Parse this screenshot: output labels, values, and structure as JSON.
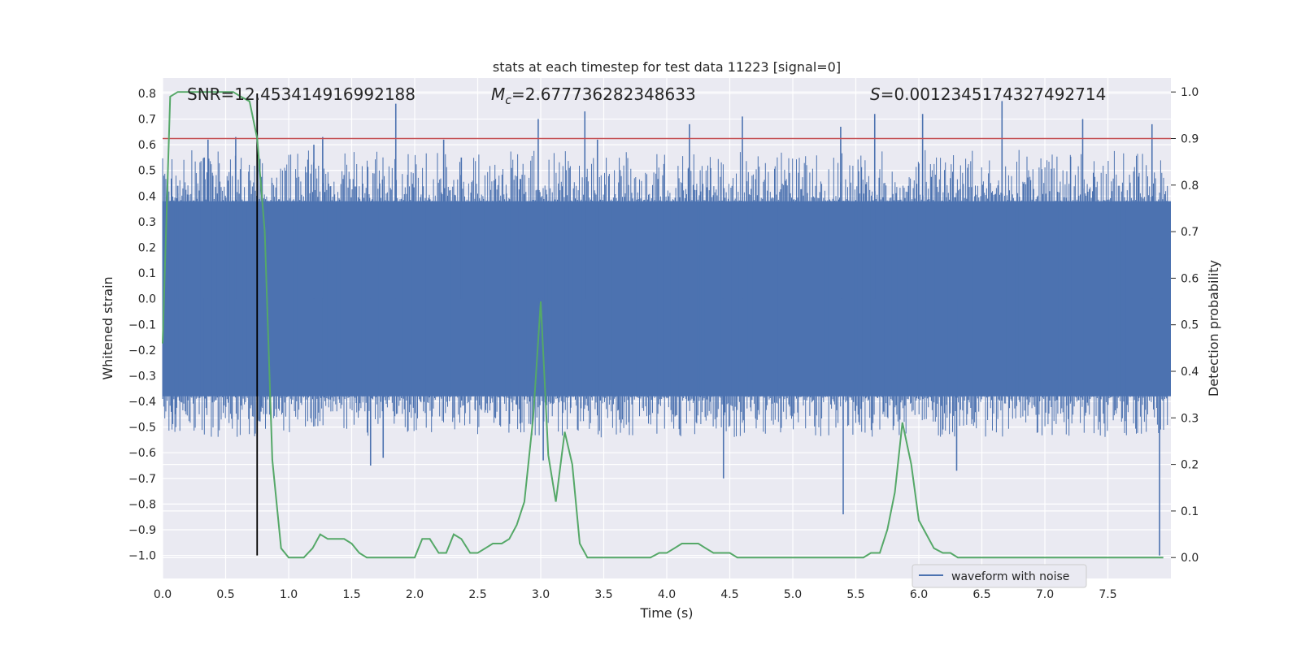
{
  "chart_data": {
    "type": "line",
    "title": "stats at each timestep for test data 11223 [signal=0]",
    "xlabel": "Time (s)",
    "ylabel": "Whitened strain",
    "y2label": "Detection probability",
    "xlim": [
      0.0,
      8.0
    ],
    "ylim": [
      -1.09,
      0.86
    ],
    "y2lim": [
      -0.045,
      1.03
    ],
    "x_ticks": [
      "0.0",
      "0.5",
      "1.0",
      "1.5",
      "2.0",
      "2.5",
      "3.0",
      "3.5",
      "4.0",
      "4.5",
      "5.0",
      "5.5",
      "6.0",
      "6.5",
      "7.0",
      "7.5"
    ],
    "y_ticks": [
      "0.8",
      "0.7",
      "0.6",
      "0.5",
      "0.4",
      "0.3",
      "0.2",
      "0.1",
      "0.0",
      "-0.1",
      "-0.2",
      "-0.3",
      "-0.4",
      "-0.5",
      "-0.6",
      "-0.7",
      "-0.8",
      "-0.9",
      "-1.0"
    ],
    "y2_ticks": [
      "1.0",
      "0.9",
      "0.8",
      "0.7",
      "0.6",
      "0.5",
      "0.4",
      "0.3",
      "0.2",
      "0.1",
      "0.0"
    ],
    "grid": true,
    "legend_position": "bottom-right",
    "annotations": {
      "snr": "SNR=12.453414916992188",
      "mc_symbol": "M",
      "mc_sub": "c",
      "mc_value": "=2.677736282348633",
      "s_symbol": "S",
      "s_value": "=0.0012345174327492714"
    },
    "threshold_line": {
      "y2": 0.9,
      "color": "#c44e52"
    },
    "vertical_marker": {
      "x": 0.75,
      "y_from": -1.0,
      "y_to": 0.8,
      "color": "#000000"
    },
    "series": [
      {
        "name": "waveform with noise",
        "axis": "left",
        "color": "#4c72b0",
        "typical_amplitude": 0.38,
        "spikes": [
          {
            "x": 0.02,
            "y": -0.25
          },
          {
            "x": 0.1,
            "y": -0.45
          },
          {
            "x": 0.12,
            "y": 0.44
          },
          {
            "x": 0.33,
            "y": 0.55
          },
          {
            "x": 0.36,
            "y": 0.62
          },
          {
            "x": 0.58,
            "y": 0.63
          },
          {
            "x": 0.78,
            "y": -0.44
          },
          {
            "x": 1.2,
            "y": 0.6
          },
          {
            "x": 1.27,
            "y": 0.63
          },
          {
            "x": 1.85,
            "y": 0.76
          },
          {
            "x": 1.65,
            "y": -0.65
          },
          {
            "x": 1.75,
            "y": -0.62
          },
          {
            "x": 2.23,
            "y": 0.62
          },
          {
            "x": 2.37,
            "y": 0.55
          },
          {
            "x": 2.98,
            "y": 0.7
          },
          {
            "x": 3.02,
            "y": -0.63
          },
          {
            "x": 3.35,
            "y": 0.73
          },
          {
            "x": 3.45,
            "y": 0.62
          },
          {
            "x": 4.18,
            "y": 0.68
          },
          {
            "x": 4.45,
            "y": -0.7
          },
          {
            "x": 4.6,
            "y": 0.71
          },
          {
            "x": 5.38,
            "y": 0.67
          },
          {
            "x": 5.4,
            "y": -0.84
          },
          {
            "x": 5.65,
            "y": 0.72
          },
          {
            "x": 6.03,
            "y": 0.72
          },
          {
            "x": 6.3,
            "y": -0.67
          },
          {
            "x": 6.66,
            "y": 0.77
          },
          {
            "x": 7.3,
            "y": 0.7
          },
          {
            "x": 7.91,
            "y": -1.0
          },
          {
            "x": 7.85,
            "y": 0.68
          }
        ]
      },
      {
        "name": "",
        "axis": "right",
        "color": "#55a868",
        "x": [
          0.0,
          0.06,
          0.12,
          0.19,
          0.25,
          0.31,
          0.37,
          0.44,
          0.5,
          0.56,
          0.62,
          0.69,
          0.75,
          0.81,
          0.87,
          0.94,
          1.0,
          1.06,
          1.12,
          1.19,
          1.25,
          1.31,
          1.37,
          1.44,
          1.5,
          1.56,
          1.62,
          1.69,
          1.75,
          1.81,
          1.87,
          1.94,
          2.0,
          2.06,
          2.12,
          2.19,
          2.25,
          2.31,
          2.37,
          2.44,
          2.5,
          2.56,
          2.62,
          2.69,
          2.75,
          2.81,
          2.87,
          2.94,
          3.0,
          3.06,
          3.12,
          3.19,
          3.25,
          3.31,
          3.37,
          3.44,
          3.5,
          3.56,
          3.62,
          3.69,
          3.75,
          3.81,
          3.87,
          3.94,
          4.0,
          4.06,
          4.12,
          4.19,
          4.25,
          4.31,
          4.37,
          4.44,
          4.5,
          4.56,
          4.62,
          4.69,
          4.75,
          4.81,
          4.87,
          4.94,
          5.0,
          5.06,
          5.12,
          5.19,
          5.25,
          5.31,
          5.37,
          5.44,
          5.5,
          5.56,
          5.62,
          5.69,
          5.75,
          5.81,
          5.87,
          5.94,
          6.0,
          6.06,
          6.12,
          6.19,
          6.25,
          6.31,
          6.37,
          6.44,
          6.5,
          6.56,
          6.62,
          6.69,
          6.75,
          6.81,
          6.87,
          6.94,
          7.0,
          7.06,
          7.12,
          7.19,
          7.25,
          7.31,
          7.37,
          7.44,
          7.5,
          7.56,
          7.62,
          7.69,
          7.75,
          7.81,
          7.87,
          7.94
        ],
        "values": [
          0.46,
          0.99,
          1.0,
          1.0,
          1.0,
          1.0,
          1.0,
          1.0,
          1.0,
          1.0,
          0.99,
          0.98,
          0.9,
          0.7,
          0.21,
          0.02,
          0.0,
          0.0,
          0.0,
          0.02,
          0.05,
          0.04,
          0.04,
          0.04,
          0.03,
          0.01,
          0.0,
          0.0,
          0.0,
          0.0,
          0.0,
          0.0,
          0.0,
          0.04,
          0.04,
          0.01,
          0.01,
          0.05,
          0.04,
          0.01,
          0.01,
          0.02,
          0.03,
          0.03,
          0.04,
          0.07,
          0.12,
          0.3,
          0.55,
          0.22,
          0.12,
          0.27,
          0.2,
          0.03,
          0.0,
          0.0,
          0.0,
          0.0,
          0.0,
          0.0,
          0.0,
          0.0,
          0.0,
          0.01,
          0.01,
          0.02,
          0.03,
          0.03,
          0.03,
          0.02,
          0.01,
          0.01,
          0.01,
          0.0,
          0.0,
          0.0,
          0.0,
          0.0,
          0.0,
          0.0,
          0.0,
          0.0,
          0.0,
          0.0,
          0.0,
          0.0,
          0.0,
          0.0,
          0.0,
          0.0,
          0.01,
          0.01,
          0.06,
          0.14,
          0.29,
          0.2,
          0.08,
          0.05,
          0.02,
          0.01,
          0.01,
          0.0,
          0.0,
          0.0,
          0.0,
          0.0,
          0.0,
          0.0,
          0.0,
          0.0,
          0.0,
          0.0,
          0.0,
          0.0,
          0.0,
          0.0,
          0.0,
          0.0,
          0.0,
          0.0,
          0.0,
          0.0,
          0.0,
          0.0,
          0.0,
          0.0,
          0.0,
          0.0
        ]
      }
    ]
  }
}
